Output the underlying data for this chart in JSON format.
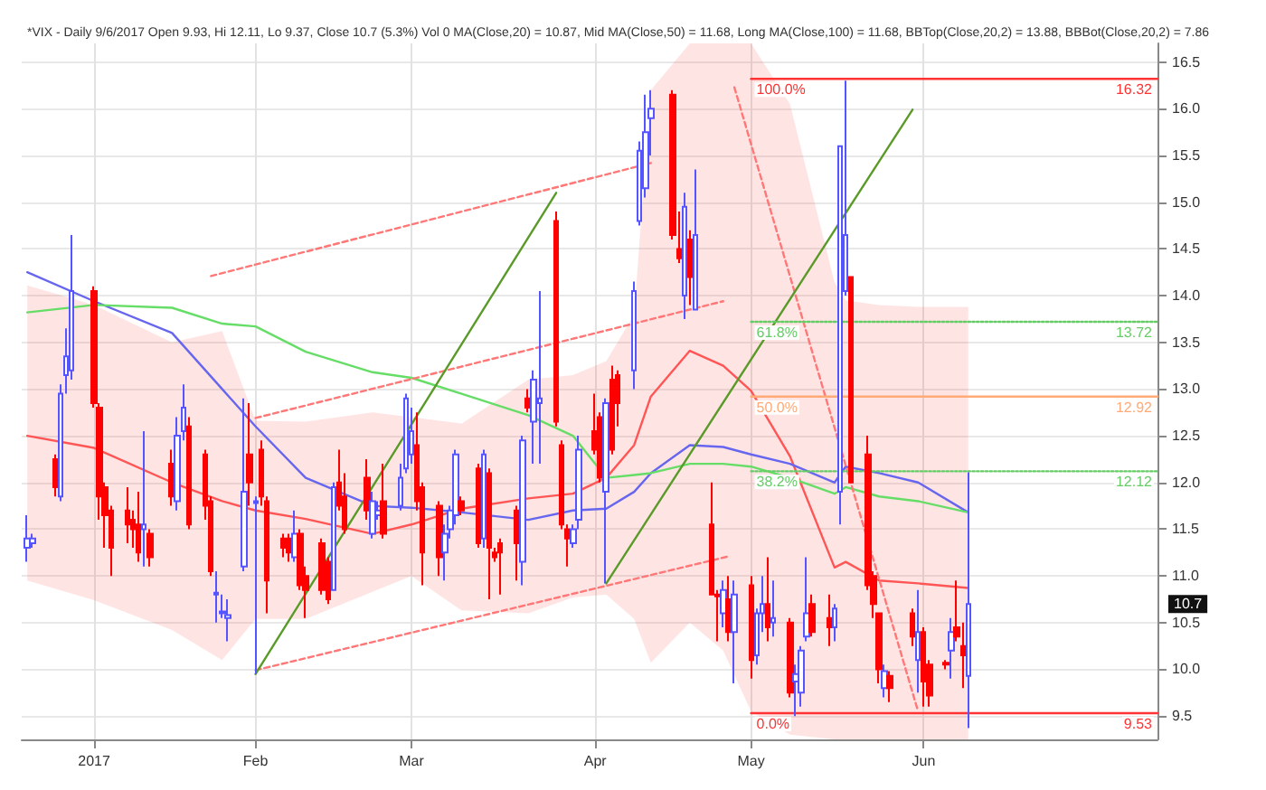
{
  "chart_data": {
    "type": "candlestick",
    "title": "*VIX - Daily 9/6/2017 Open 9.93, Hi 12.11, Lo 9.37, Close 10.7 (5.3%) Vol 0 MA(Close,20) = 10.87, Mid MA(Close,50) = 11.68, Long MA(Close,100) = 11.68, BBTop(Close,20,2) = 13.88, BBBot(Close,20,2) = 7.86",
    "x": [
      "2016-12-22",
      "2016-12-23",
      "2016-12-27",
      "2016-12-28",
      "2016-12-29",
      "2016-12-30",
      "2017-01-03",
      "2017-01-04",
      "2017-01-05",
      "2017-01-06",
      "2017-01-09",
      "2017-01-10",
      "2017-01-11",
      "2017-01-12",
      "2017-01-13",
      "2017-01-17",
      "2017-01-18",
      "2017-01-19",
      "2017-01-20",
      "2017-01-23",
      "2017-01-24",
      "2017-01-25",
      "2017-01-26",
      "2017-01-27",
      "2017-01-30",
      "2017-01-31",
      "2017-02-01",
      "2017-02-02",
      "2017-02-03",
      "2017-02-06",
      "2017-02-07",
      "2017-02-08",
      "2017-02-09",
      "2017-02-10",
      "2017-02-13",
      "2017-02-14",
      "2017-02-15",
      "2017-02-16",
      "2017-02-17",
      "2017-02-21",
      "2017-02-22",
      "2017-02-23",
      "2017-02-24",
      "2017-02-27",
      "2017-02-28",
      "2017-03-01",
      "2017-03-02",
      "2017-03-03",
      "2017-03-06",
      "2017-03-07",
      "2017-03-08",
      "2017-03-09",
      "2017-03-10",
      "2017-03-13",
      "2017-03-14",
      "2017-03-15",
      "2017-03-16",
      "2017-03-17",
      "2017-03-20",
      "2017-03-21",
      "2017-03-22",
      "2017-03-23",
      "2017-03-24",
      "2017-03-27",
      "2017-03-28",
      "2017-03-29",
      "2017-03-30",
      "2017-03-31",
      "2017-04-03",
      "2017-04-04",
      "2017-04-05",
      "2017-04-06",
      "2017-04-07",
      "2017-04-10",
      "2017-04-11",
      "2017-04-12",
      "2017-04-13",
      "2017-04-17",
      "2017-04-18",
      "2017-04-19",
      "2017-04-20",
      "2017-04-21",
      "2017-04-24",
      "2017-04-25",
      "2017-04-26",
      "2017-04-27",
      "2017-04-28",
      "2017-05-01",
      "2017-05-02",
      "2017-05-03",
      "2017-05-04",
      "2017-05-05",
      "2017-05-08",
      "2017-05-09",
      "2017-05-10",
      "2017-05-11",
      "2017-05-12",
      "2017-05-15",
      "2017-05-16",
      "2017-05-17",
      "2017-05-18",
      "2017-05-19",
      "2017-05-22",
      "2017-05-23",
      "2017-05-24",
      "2017-05-25",
      "2017-05-26",
      "2017-05-30",
      "2017-05-31",
      "2017-06-01",
      "2017-06-02",
      "2017-06-05",
      "2017-06-06",
      "2017-06-07",
      "2017-06-08",
      "2017-06-09"
    ],
    "ohlc": [
      [
        11.3,
        11.65,
        11.15,
        11.4
      ],
      [
        11.35,
        11.45,
        11.3,
        11.4
      ],
      [
        12.25,
        12.3,
        11.85,
        11.95
      ],
      [
        11.85,
        13.05,
        11.8,
        12.95
      ],
      [
        13.15,
        13.65,
        12.95,
        13.35
      ],
      [
        13.2,
        14.65,
        13.1,
        14.05
      ],
      [
        14.05,
        14.1,
        12.8,
        12.85
      ],
      [
        12.8,
        12.85,
        11.6,
        11.85
      ],
      [
        11.95,
        12.0,
        11.3,
        11.65
      ],
      [
        11.7,
        11.75,
        11.0,
        11.3
      ],
      [
        11.7,
        11.95,
        11.35,
        11.55
      ],
      [
        11.6,
        11.7,
        11.3,
        11.5
      ],
      [
        11.55,
        11.9,
        11.15,
        11.25
      ],
      [
        11.5,
        12.55,
        11.1,
        11.55
      ],
      [
        11.45,
        11.5,
        11.1,
        11.2
      ],
      [
        12.2,
        12.35,
        11.75,
        11.85
      ],
      [
        11.8,
        12.7,
        11.7,
        12.5
      ],
      [
        12.55,
        13.05,
        12.45,
        12.8
      ],
      [
        12.6,
        12.7,
        11.5,
        11.55
      ],
      [
        12.3,
        12.35,
        11.6,
        11.75
      ],
      [
        11.8,
        11.85,
        11.0,
        11.05
      ],
      [
        10.8,
        11.05,
        10.5,
        10.82
      ],
      [
        10.6,
        10.8,
        10.55,
        10.62
      ],
      [
        10.55,
        10.75,
        10.3,
        10.58
      ],
      [
        11.1,
        12.9,
        11.05,
        11.9
      ],
      [
        12.3,
        12.85,
        11.75,
        12.0
      ],
      [
        11.78,
        11.85,
        9.95,
        11.8
      ],
      [
        12.35,
        12.45,
        11.75,
        11.85
      ],
      [
        11.8,
        11.85,
        10.6,
        10.95
      ],
      [
        11.4,
        11.45,
        11.2,
        11.3
      ],
      [
        11.4,
        11.45,
        11.15,
        11.25
      ],
      [
        11.2,
        11.7,
        11.15,
        11.45
      ],
      [
        11.45,
        11.5,
        10.85,
        10.9
      ],
      [
        11.0,
        11.1,
        10.55,
        10.85
      ],
      [
        11.35,
        11.4,
        10.8,
        10.85
      ],
      [
        11.15,
        11.2,
        10.7,
        10.75
      ],
      [
        10.85,
        12.0,
        10.85,
        11.95
      ],
      [
        12.0,
        12.35,
        11.7,
        11.75
      ],
      [
        11.85,
        12.1,
        11.45,
        11.5
      ],
      [
        12.05,
        12.25,
        11.6,
        11.7
      ],
      [
        11.45,
        11.9,
        11.4,
        11.8
      ],
      [
        11.65,
        11.8,
        11.6,
        11.7
      ],
      [
        11.8,
        12.2,
        11.4,
        11.45
      ],
      [
        11.75,
        12.2,
        11.7,
        12.05
      ],
      [
        12.15,
        12.95,
        12.1,
        12.9
      ],
      [
        12.3,
        12.8,
        12.2,
        12.55
      ],
      [
        12.4,
        12.75,
        11.7,
        11.8
      ],
      [
        11.95,
        12.0,
        10.9,
        11.25
      ],
      [
        11.75,
        11.8,
        11.0,
        11.2
      ],
      [
        11.25,
        11.55,
        10.95,
        11.45
      ],
      [
        11.5,
        11.75,
        11.4,
        11.7
      ],
      [
        11.65,
        12.35,
        11.55,
        12.3
      ],
      [
        11.8,
        11.85,
        11.65,
        11.7
      ],
      [
        12.15,
        12.2,
        11.3,
        11.35
      ],
      [
        11.4,
        12.35,
        11.3,
        12.3
      ],
      [
        12.1,
        12.15,
        10.75,
        11.3
      ],
      [
        11.25,
        11.3,
        11.15,
        11.2
      ],
      [
        11.35,
        11.4,
        10.8,
        11.25
      ],
      [
        11.7,
        11.75,
        10.95,
        11.35
      ],
      [
        11.15,
        12.5,
        10.9,
        12.45
      ],
      [
        12.9,
        13.0,
        12.75,
        12.8
      ],
      [
        12.65,
        13.2,
        12.2,
        13.1
      ],
      [
        12.85,
        14.05,
        12.2,
        12.9
      ],
      [
        14.8,
        14.9,
        12.6,
        12.65
      ],
      [
        12.4,
        12.45,
        11.5,
        11.55
      ],
      [
        11.5,
        11.55,
        11.1,
        11.4
      ],
      [
        11.35,
        11.55,
        11.3,
        11.5
      ],
      [
        11.6,
        12.5,
        11.5,
        12.35
      ],
      [
        12.55,
        12.95,
        12.3,
        12.35
      ],
      [
        12.7,
        12.75,
        12.0,
        12.05
      ],
      [
        11.9,
        12.9,
        10.92,
        12.85
      ],
      [
        13.1,
        13.25,
        12.3,
        12.35
      ],
      [
        13.15,
        13.2,
        12.6,
        12.85
      ],
      [
        13.2,
        14.15,
        13.0,
        14.05
      ],
      [
        14.8,
        15.65,
        14.75,
        15.55
      ],
      [
        15.15,
        16.15,
        15.05,
        15.75
      ],
      [
        15.9,
        16.2,
        15.5,
        16.0
      ],
      [
        16.15,
        16.2,
        14.6,
        14.65
      ],
      [
        14.5,
        14.9,
        14.35,
        14.4
      ],
      [
        14.0,
        15.1,
        13.75,
        14.95
      ],
      [
        14.6,
        14.7,
        13.9,
        14.2
      ],
      [
        13.85,
        15.35,
        13.85,
        14.65
      ],
      [
        11.55,
        12.0,
        10.8,
        10.8
      ],
      [
        10.8,
        10.85,
        10.3,
        10.78
      ],
      [
        10.6,
        10.95,
        10.45,
        10.85
      ],
      [
        10.75,
        11.0,
        10.3,
        10.4
      ],
      [
        10.4,
        10.95,
        9.85,
        10.8
      ],
      [
        10.9,
        11.0,
        9.9,
        10.1
      ],
      [
        10.15,
        10.65,
        10.05,
        10.6
      ],
      [
        10.6,
        11.0,
        10.4,
        10.7
      ],
      [
        10.7,
        11.2,
        10.3,
        10.45
      ],
      [
        10.5,
        10.95,
        10.35,
        10.55
      ],
      [
        10.5,
        10.55,
        9.7,
        9.75
      ],
      [
        9.87,
        10.05,
        9.5,
        9.95
      ],
      [
        9.75,
        10.25,
        9.6,
        10.2
      ],
      [
        10.35,
        11.2,
        10.3,
        10.6
      ],
      [
        10.7,
        10.8,
        10.35,
        10.4
      ],
      [
        10.55,
        10.8,
        10.25,
        10.45
      ],
      [
        10.45,
        10.7,
        10.3,
        10.65
      ],
      [
        11.9,
        15.6,
        11.55,
        15.6
      ],
      [
        14.05,
        16.3,
        14.0,
        14.65
      ],
      [
        14.2,
        14.2,
        12.0,
        12.0
      ],
      [
        12.3,
        12.5,
        10.85,
        10.9
      ],
      [
        11.0,
        11.05,
        10.55,
        10.7
      ],
      [
        10.6,
        10.6,
        9.85,
        10.0
      ],
      [
        9.8,
        10.05,
        9.7,
        9.98
      ],
      [
        9.93,
        9.98,
        9.65,
        9.8
      ],
      [
        10.6,
        10.65,
        10.25,
        10.35
      ],
      [
        10.1,
        10.85,
        9.75,
        10.4
      ],
      [
        10.4,
        10.45,
        9.6,
        9.87
      ],
      [
        10.05,
        10.1,
        9.6,
        9.72
      ],
      [
        10.07,
        10.1,
        10.0,
        10.05
      ],
      [
        10.2,
        10.55,
        9.9,
        10.4
      ],
      [
        10.45,
        10.95,
        10.3,
        10.35
      ],
      [
        10.25,
        10.5,
        9.8,
        10.15
      ],
      [
        9.93,
        12.11,
        9.37,
        10.7
      ]
    ],
    "series": [
      {
        "type": "line",
        "color": "#ff5555",
        "x": [
          "2016-12-22",
          "2017-01-03",
          "2017-01-17",
          "2017-01-26",
          "2017-02-01",
          "2017-02-10",
          "2017-02-22",
          "2017-03-01",
          "2017-03-10",
          "2017-03-22",
          "2017-03-30",
          "2017-04-05",
          "2017-04-10",
          "2017-04-13",
          "2017-04-20",
          "2017-04-26",
          "2017-05-01",
          "2017-05-08",
          "2017-05-16",
          "2017-05-18",
          "2017-05-24",
          "2017-05-31",
          "2017-06-09"
        ],
        "values": [
          12.5,
          12.37,
          12.0,
          11.8,
          11.7,
          11.61,
          11.45,
          11.55,
          11.72,
          11.83,
          11.88,
          12.05,
          12.4,
          12.92,
          13.41,
          13.25,
          12.98,
          12.28,
          11.09,
          11.15,
          10.95,
          10.92,
          10.87
        ],
        "upper": [
          14.11,
          13.9,
          13.5,
          13.62,
          12.66,
          12.65,
          12.75,
          12.7,
          12.63,
          13.1,
          13.15,
          13.3,
          13.8,
          16.2,
          16.7,
          16.7,
          16.7,
          16.05,
          14.14,
          13.95,
          13.9,
          13.88,
          13.88
        ],
        "lower": [
          10.95,
          10.74,
          10.42,
          10.1,
          10.54,
          10.54,
          10.83,
          11.0,
          10.63,
          10.6,
          10.77,
          10.8,
          10.54,
          10.07,
          10.5,
          10.2,
          9.55,
          9.3,
          9.25,
          9.25,
          9.25,
          9.25,
          9.25
        ]
      },
      {
        "type": "line",
        "color": "#6666ee",
        "x": [
          "2016-12-22",
          "2017-01-03",
          "2017-01-17",
          "2017-01-26",
          "2017-02-01",
          "2017-02-10",
          "2017-02-22",
          "2017-03-01",
          "2017-03-10",
          "2017-03-22",
          "2017-03-30",
          "2017-04-05",
          "2017-04-10",
          "2017-04-13",
          "2017-04-20",
          "2017-04-26",
          "2017-05-01",
          "2017-05-08",
          "2017-05-16",
          "2017-05-18",
          "2017-05-24",
          "2017-05-31",
          "2017-06-09"
        ],
        "values": [
          14.25,
          13.94,
          13.6,
          13.0,
          12.6,
          12.05,
          11.75,
          11.73,
          11.68,
          11.6,
          11.7,
          11.72,
          11.9,
          12.1,
          12.4,
          12.38,
          12.3,
          12.2,
          12.0,
          12.17,
          12.1,
          12.0,
          11.68
        ]
      },
      {
        "type": "line",
        "color": "#66dd66",
        "x": [
          "2016-12-22",
          "2017-01-03",
          "2017-01-17",
          "2017-01-26",
          "2017-02-01",
          "2017-02-10",
          "2017-02-22",
          "2017-03-01",
          "2017-03-10",
          "2017-03-22",
          "2017-03-30",
          "2017-04-05",
          "2017-04-10",
          "2017-04-13",
          "2017-04-20",
          "2017-04-26",
          "2017-05-01",
          "2017-05-08",
          "2017-05-16",
          "2017-05-18",
          "2017-05-24",
          "2017-05-31",
          "2017-06-09"
        ],
        "values": [
          13.82,
          13.9,
          13.87,
          13.7,
          13.67,
          13.4,
          13.18,
          13.12,
          12.95,
          12.72,
          12.5,
          12.05,
          12.08,
          12.1,
          12.2,
          12.2,
          12.17,
          12.05,
          11.88,
          11.95,
          11.85,
          11.8,
          11.68
        ]
      },
      {
        "type": "line",
        "color": "#ff7777",
        "line_style": "dashed",
        "x": [
          "2017-01-24",
          "2017-04-13"
        ],
        "values": [
          14.21,
          15.42
        ]
      },
      {
        "type": "line",
        "color": "#ff7777",
        "line_style": "dashed",
        "x": [
          "2017-02-01",
          "2017-04-26"
        ],
        "values": [
          12.69,
          13.94
        ]
      },
      {
        "type": "line",
        "color": "#ff7777",
        "line_style": "dashed",
        "x": [
          "2017-02-01",
          "2017-04-27"
        ],
        "values": [
          9.99,
          11.21
        ]
      },
      {
        "type": "line",
        "color": "#ff7777",
        "line_style": "dashed",
        "x": [
          "2017-04-28",
          "2017-05-31"
        ],
        "values": [
          16.23,
          9.55
        ]
      },
      {
        "type": "line",
        "color": "#5a9a28",
        "x": [
          "2017-02-01",
          "2017-03-27"
        ],
        "values": [
          9.95,
          15.1
        ]
      },
      {
        "type": "line",
        "color": "#5a9a28",
        "x": [
          "2017-04-05",
          "2017-05-30"
        ],
        "values": [
          10.92,
          15.99
        ]
      },
      {
        "type": "line",
        "color": "#ff3333",
        "x": [
          "2017-05-01",
          "2017-07-13"
        ],
        "values": [
          16.32,
          16.32
        ]
      },
      {
        "type": "line",
        "color": "#66cc66",
        "line_style": "dotted",
        "x": [
          "2017-05-01",
          "2017-07-13"
        ],
        "values": [
          13.72,
          13.72
        ]
      },
      {
        "type": "line",
        "color": "#ffaa77",
        "x": [
          "2017-05-01",
          "2017-07-13"
        ],
        "values": [
          12.92,
          12.92
        ]
      },
      {
        "type": "line",
        "color": "#66cc66",
        "line_style": "dotted",
        "x": [
          "2017-05-01",
          "2017-07-13"
        ],
        "values": [
          12.12,
          12.12
        ]
      },
      {
        "type": "line",
        "color": "#ff3333",
        "x": [
          "2017-05-01",
          "2017-07-13"
        ],
        "values": [
          9.53,
          9.53
        ]
      }
    ],
    "annotations": [
      {
        "text": "100.0%",
        "x": "2017-05-01",
        "y": 16.32
      },
      {
        "text": "16.32",
        "x": "2017-07-13",
        "y": 16.32
      },
      {
        "text": "61.8%",
        "x": "2017-05-01",
        "y": 13.72
      },
      {
        "text": "13.72",
        "x": "2017-07-13",
        "y": 13.72
      },
      {
        "text": "50.0%",
        "x": "2017-05-01",
        "y": 12.92
      },
      {
        "text": "12.92",
        "x": "2017-07-13",
        "y": 12.92
      },
      {
        "text": "38.2%",
        "x": "2017-05-01",
        "y": 12.12
      },
      {
        "text": "12.12",
        "x": "2017-07-13",
        "y": 12.12
      },
      {
        "text": "0.0%",
        "x": "2017-05-01",
        "y": 9.53
      },
      {
        "text": "9.53",
        "x": "2017-07-13",
        "y": 9.53
      },
      "10.7"
    ],
    "xlim": [
      "2016-12-21",
      "2017-07-13"
    ],
    "xticks": [
      {
        "value": "2017-01-03",
        "label": "2017"
      },
      {
        "value": "2017-02-01",
        "label": "Feb"
      },
      {
        "value": "2017-03-01",
        "label": "Mar"
      },
      {
        "value": "2017-04-03",
        "label": "Apr"
      },
      {
        "value": "2017-05-01",
        "label": "May"
      },
      {
        "value": "2017-06-01",
        "label": "Jun"
      }
    ],
    "ylim": [
      9.25,
      16.7
    ],
    "yticks": [
      {
        "value": 9.5,
        "label": "9.5"
      },
      {
        "value": 10,
        "label": "10.0"
      },
      {
        "value": 10.5,
        "label": "10.5"
      },
      {
        "value": 11,
        "label": "11.0"
      },
      {
        "value": 11.5,
        "label": "11.5"
      },
      {
        "value": 12,
        "label": "12.0"
      },
      {
        "value": 12.5,
        "label": "12.5"
      },
      {
        "value": 13,
        "label": "13.0"
      },
      {
        "value": 13.5,
        "label": "13.5"
      },
      {
        "value": 14,
        "label": "14.0"
      },
      {
        "value": 14.5,
        "label": "14.5"
      },
      {
        "value": 15,
        "label": "15.0"
      },
      {
        "value": 15.5,
        "label": "15.5"
      },
      {
        "value": 16,
        "label": "16.0"
      },
      {
        "value": 16.5,
        "label": "16.5"
      }
    ],
    "grid": true
  }
}
